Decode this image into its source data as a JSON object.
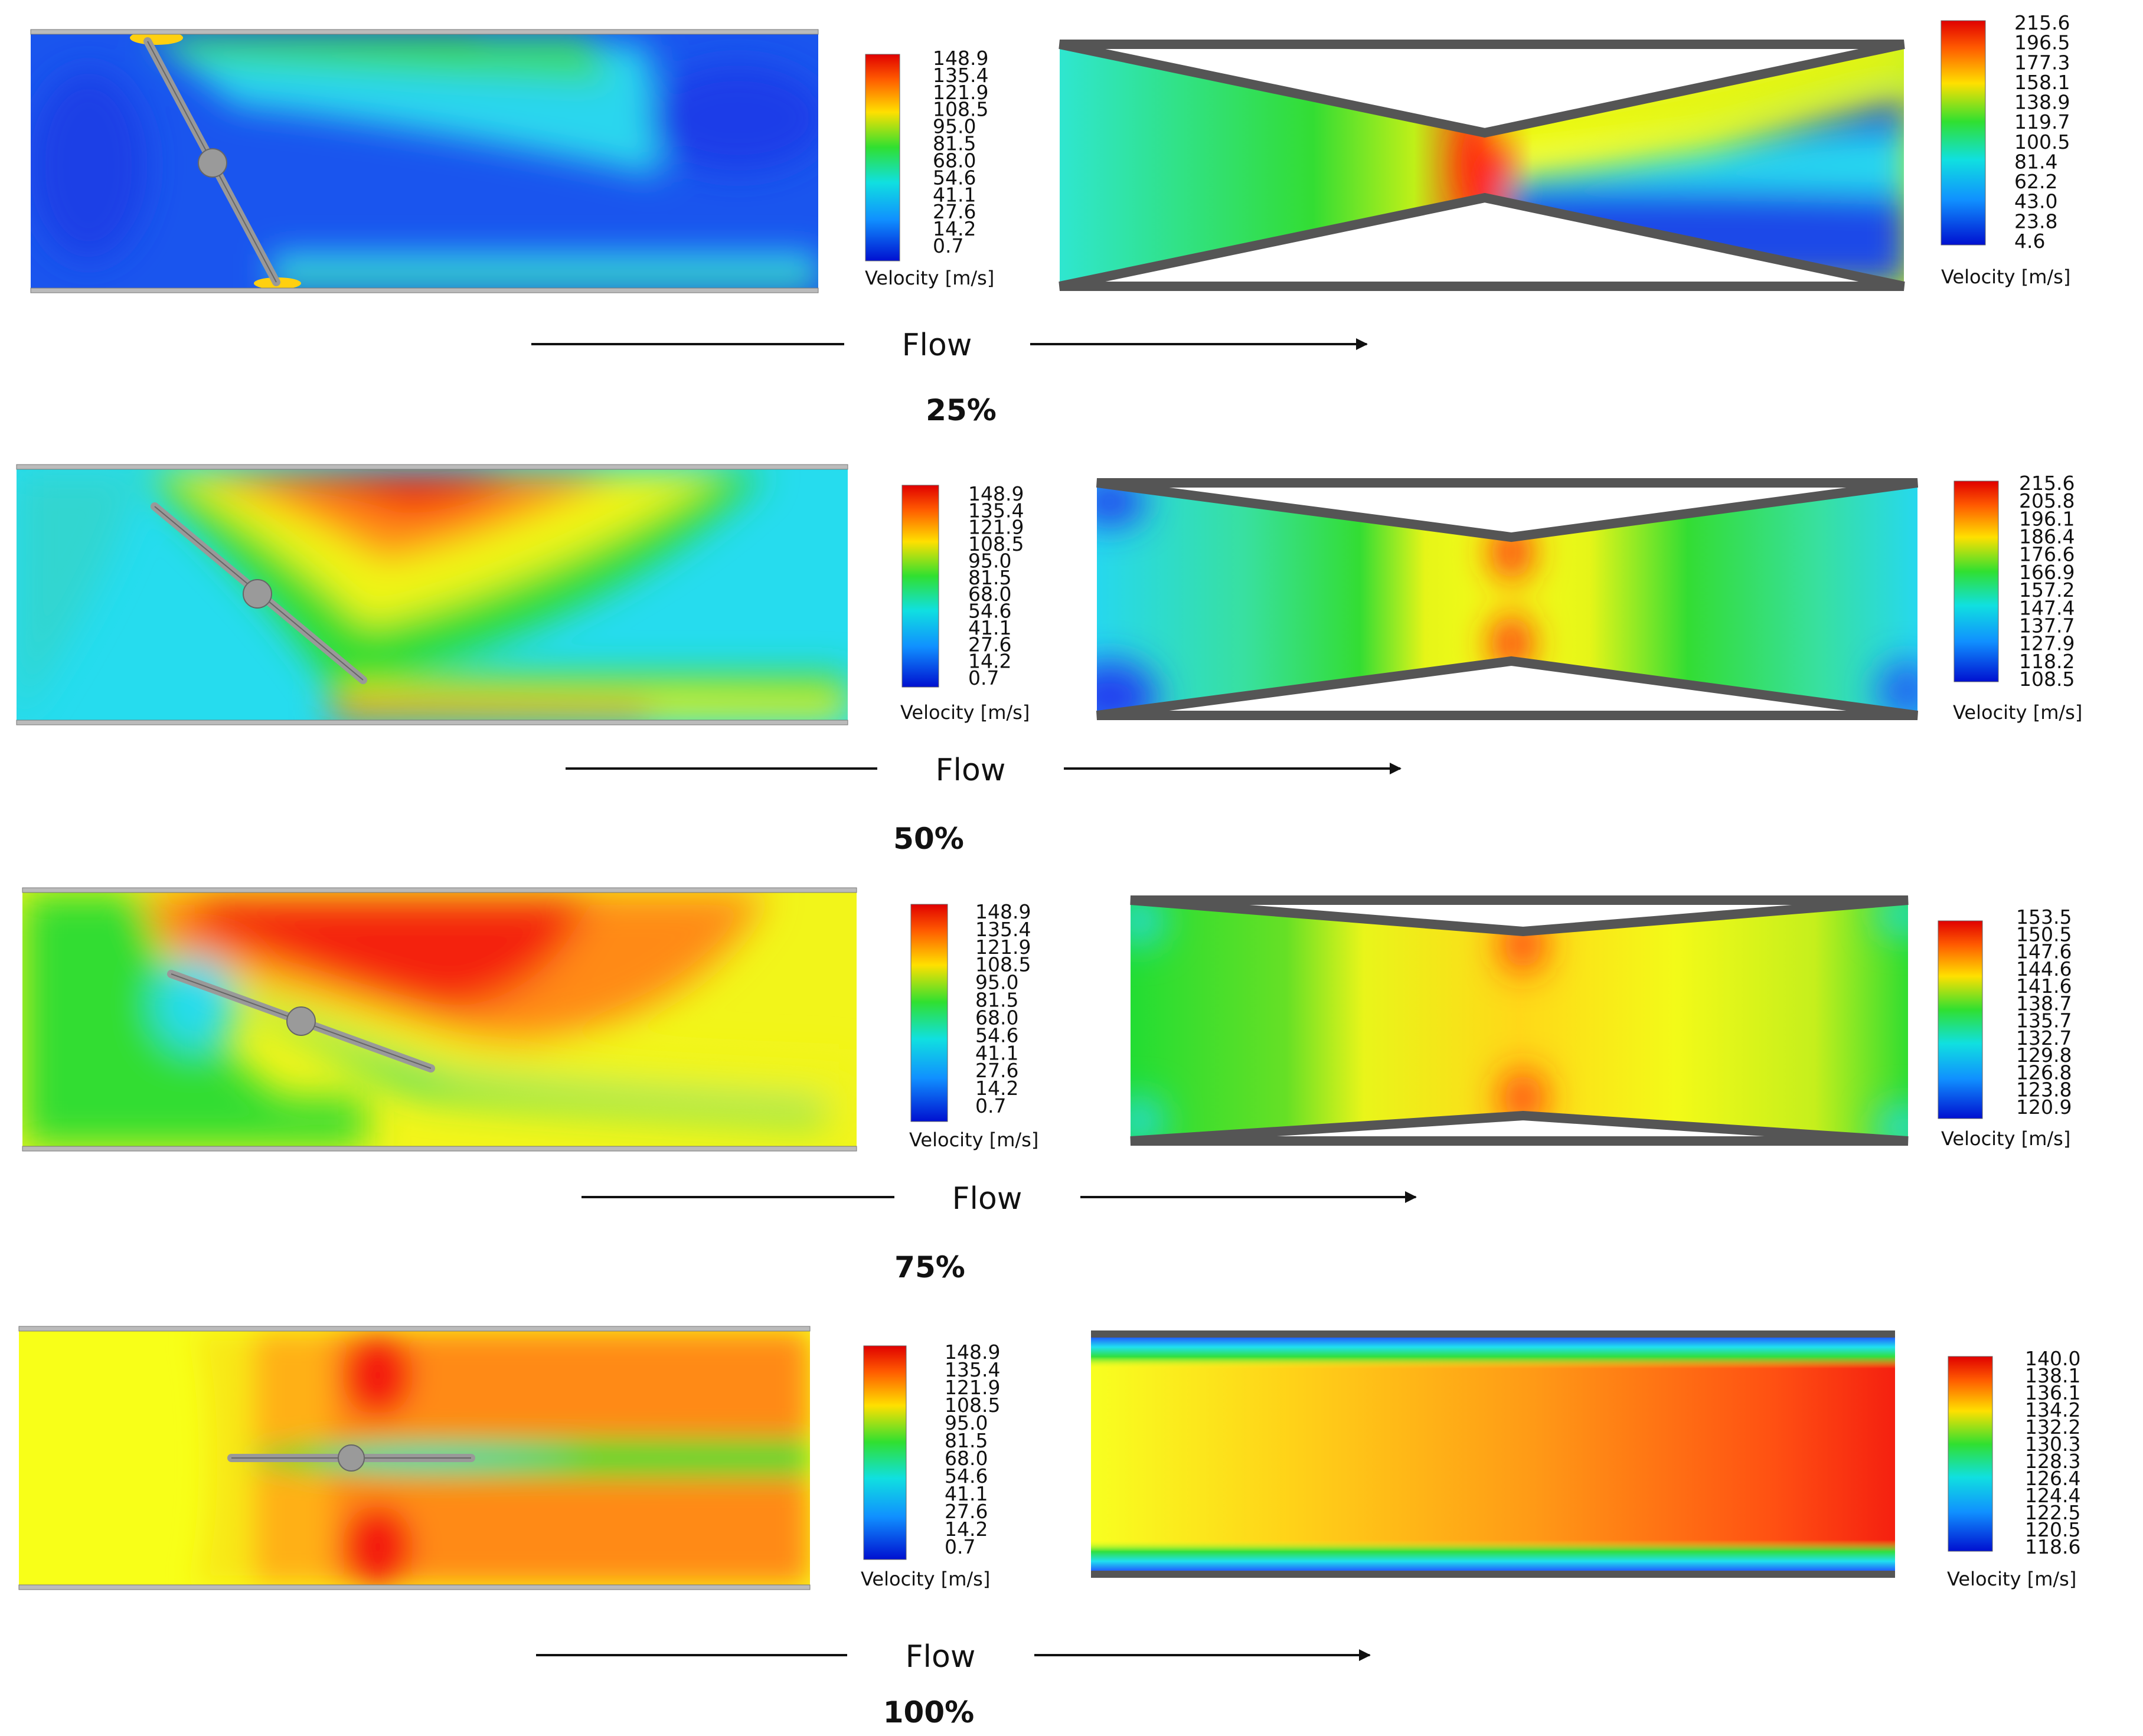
{
  "common": {
    "flow_label": "Flow",
    "velocity_label": "Velocity [m/s]"
  },
  "panels": [
    {
      "opening": "25%",
      "valve_scale": [
        "148.9",
        "135.4",
        "121.9",
        "108.5",
        "95.0",
        "81.5",
        "68.0",
        "54.6",
        "41.1",
        "27.6",
        "14.2",
        "0.7"
      ],
      "throat_scale": [
        "215.6",
        "196.5",
        "177.3",
        "158.1",
        "138.9",
        "119.7",
        "100.5",
        "81.4",
        "62.2",
        "43.0",
        "23.8",
        "4.6"
      ]
    },
    {
      "opening": "50%",
      "valve_scale": [
        "148.9",
        "135.4",
        "121.9",
        "108.5",
        "95.0",
        "81.5",
        "68.0",
        "54.6",
        "41.1",
        "27.6",
        "14.2",
        "0.7"
      ],
      "throat_scale": [
        "215.6",
        "205.8",
        "196.1",
        "186.4",
        "176.6",
        "166.9",
        "157.2",
        "147.4",
        "137.7",
        "127.9",
        "118.2",
        "108.5"
      ]
    },
    {
      "opening": "75%",
      "valve_scale": [
        "148.9",
        "135.4",
        "121.9",
        "108.5",
        "95.0",
        "81.5",
        "68.0",
        "54.6",
        "41.1",
        "27.6",
        "14.2",
        "0.7"
      ],
      "throat_scale": [
        "153.5",
        "150.5",
        "147.6",
        "144.6",
        "141.6",
        "138.7",
        "135.7",
        "132.7",
        "129.8",
        "126.8",
        "123.8",
        "120.9"
      ]
    },
    {
      "opening": "100%",
      "valve_scale": [
        "148.9",
        "135.4",
        "121.9",
        "108.5",
        "95.0",
        "81.5",
        "68.0",
        "54.6",
        "41.1",
        "27.6",
        "14.2",
        "0.7"
      ],
      "throat_scale": [
        "140.0",
        "138.1",
        "136.1",
        "134.2",
        "132.2",
        "130.3",
        "128.3",
        "126.4",
        "124.4",
        "122.5",
        "120.5",
        "118.6"
      ]
    }
  ],
  "colors": {
    "blue": "#1a3cf0",
    "cyan": "#18e6f6",
    "green": "#22dd22",
    "yellow": "#f6ff18",
    "orange": "#ffa010",
    "red": "#f21a10",
    "wall": "#555555",
    "disc": "#9a9a9a"
  }
}
